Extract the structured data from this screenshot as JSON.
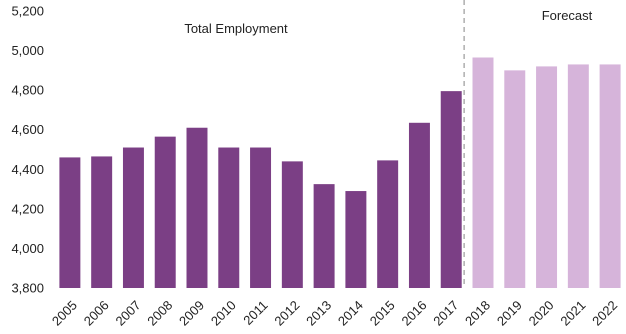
{
  "chart_data": {
    "type": "bar",
    "categories": [
      "2005",
      "2006",
      "2007",
      "2008",
      "2009",
      "2010",
      "2011",
      "2012",
      "2013",
      "2014",
      "2015",
      "2016",
      "2017",
      "2018",
      "2019",
      "2020",
      "2021",
      "2022"
    ],
    "values": [
      4460,
      4465,
      4510,
      4565,
      4610,
      4510,
      4510,
      4440,
      4325,
      4290,
      4445,
      4635,
      4795,
      4965,
      4900,
      4920,
      4930,
      4930
    ],
    "forecast_start": "2018",
    "ylim": [
      3800,
      5200
    ],
    "yticks": [
      "3,800",
      "4,000",
      "4,200",
      "4,400",
      "4,600",
      "4,800",
      "5,000",
      "5,200"
    ],
    "ytick_values": [
      3800,
      4000,
      4200,
      4400,
      4600,
      4800,
      5000,
      5200
    ],
    "annotations": {
      "left": "Total Employment",
      "right": "Forecast"
    },
    "grid": false,
    "colors": {
      "actual": "#7b3f85",
      "forecast": "#d6b4da",
      "divider": "#9a9a9a"
    }
  }
}
